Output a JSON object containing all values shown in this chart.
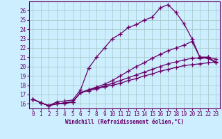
{
  "xlabel": "Windchill (Refroidissement éolien,°C)",
  "bg_color": "#cceeff",
  "grid_color": "#aacccc",
  "line_color": "#660066",
  "spine_color": "#660066",
  "xlim": [
    -0.5,
    23.5
  ],
  "ylim": [
    15.5,
    27.0
  ],
  "xticks": [
    0,
    1,
    2,
    3,
    4,
    5,
    6,
    7,
    8,
    9,
    10,
    11,
    12,
    13,
    14,
    15,
    16,
    17,
    18,
    19,
    20,
    21,
    22,
    23
  ],
  "yticks": [
    16,
    17,
    18,
    19,
    20,
    21,
    22,
    23,
    24,
    25,
    26
  ],
  "line1_x": [
    0,
    1,
    2,
    3,
    4,
    5,
    6,
    7,
    8,
    9,
    10,
    11,
    12,
    13,
    14,
    15,
    16,
    17,
    18,
    19,
    20,
    21,
    22,
    23
  ],
  "line1_y": [
    16.5,
    16.1,
    15.8,
    16.2,
    16.3,
    16.4,
    17.5,
    19.8,
    21.0,
    22.0,
    23.0,
    23.5,
    24.2,
    24.5,
    25.0,
    25.3,
    26.3,
    26.65,
    25.8,
    24.6,
    23.0,
    21.0,
    21.0,
    20.8
  ],
  "line2_x": [
    0,
    1,
    2,
    3,
    4,
    5,
    6,
    7,
    8,
    9,
    10,
    11,
    12,
    13,
    14,
    15,
    16,
    17,
    18,
    19,
    20,
    21,
    22,
    23
  ],
  "line2_y": [
    16.5,
    16.1,
    15.8,
    16.0,
    16.1,
    16.2,
    17.2,
    17.5,
    17.8,
    18.1,
    18.5,
    19.0,
    19.5,
    20.0,
    20.4,
    20.9,
    21.3,
    21.7,
    22.0,
    22.3,
    22.7,
    21.0,
    21.0,
    20.5
  ],
  "line3_x": [
    0,
    1,
    2,
    3,
    4,
    5,
    6,
    7,
    8,
    9,
    10,
    11,
    12,
    13,
    14,
    15,
    16,
    17,
    18,
    19,
    20,
    21,
    22,
    23
  ],
  "line3_y": [
    16.5,
    16.1,
    15.8,
    16.0,
    16.1,
    16.2,
    17.2,
    17.5,
    17.7,
    17.9,
    18.2,
    18.5,
    18.8,
    19.1,
    19.4,
    19.7,
    20.0,
    20.3,
    20.5,
    20.7,
    20.9,
    20.9,
    20.9,
    20.4
  ],
  "line4_x": [
    0,
    1,
    2,
    3,
    4,
    5,
    6,
    7,
    8,
    9,
    10,
    11,
    12,
    13,
    14,
    15,
    16,
    17,
    18,
    19,
    20,
    21,
    22,
    23
  ],
  "line4_y": [
    16.5,
    16.1,
    15.8,
    16.0,
    16.0,
    16.2,
    17.2,
    17.4,
    17.6,
    17.8,
    18.0,
    18.2,
    18.5,
    18.7,
    19.0,
    19.2,
    19.5,
    19.7,
    19.9,
    20.1,
    20.2,
    20.3,
    20.4,
    20.5
  ]
}
